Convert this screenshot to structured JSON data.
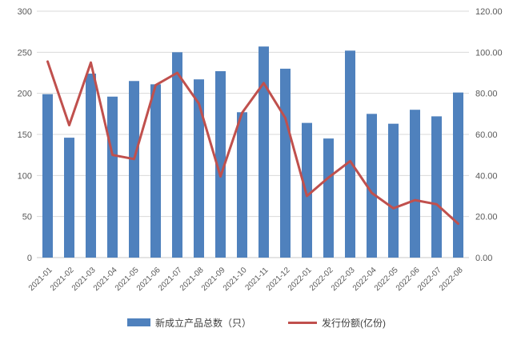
{
  "chart_data": {
    "type": "bar+line combo",
    "categories": [
      "2021-01",
      "2021-02",
      "2021-03",
      "2021-04",
      "2021-05",
      "2021-06",
      "2021-07",
      "2021-08",
      "2021-09",
      "2021-10",
      "2021-11",
      "2021-12",
      "2022-01",
      "2022-02",
      "2022-03",
      "2022-04",
      "2022-05",
      "2022-06",
      "2022-07",
      "2022-08"
    ],
    "series": [
      {
        "name": "新成立产品总数（只）",
        "type": "bar",
        "axis": "left",
        "color": "#4F81BD",
        "values": [
          199,
          146,
          224,
          196,
          215,
          211,
          250,
          217,
          227,
          177,
          257,
          230,
          164,
          145,
          252,
          175,
          163,
          180,
          172,
          201
        ]
      },
      {
        "name": "发行份额(亿份)",
        "type": "line",
        "axis": "right",
        "color": "#C0504D",
        "values": [
          95.5,
          64.5,
          95.0,
          50.0,
          48.0,
          84.0,
          90.0,
          75.0,
          39.5,
          70.5,
          85.0,
          68.0,
          30.0,
          39.0,
          47.0,
          31.5,
          24.0,
          28.0,
          26.0,
          16.5
        ]
      }
    ],
    "left_axis": {
      "min": 0,
      "max": 300,
      "step": 50,
      "ticks": [
        "300",
        "250",
        "200",
        "150",
        "100",
        "50",
        "0"
      ]
    },
    "right_axis": {
      "min": 0,
      "max": 120,
      "step": 20,
      "ticks": [
        "120.00",
        "100.00",
        "80.00",
        "60.00",
        "40.00",
        "20.00",
        "0.00"
      ]
    },
    "title": "",
    "xlabel": "",
    "ylabel_left": "",
    "ylabel_right": "",
    "grid": "horizontal gridlines only",
    "legend_position": "bottom",
    "style": {
      "background": "#FFFFFF",
      "gridline_color": "#D9D9D9",
      "axis_line_color": "#C8C8C8",
      "tick_label_color": "#595959",
      "legend_text_color": "#404040"
    }
  }
}
